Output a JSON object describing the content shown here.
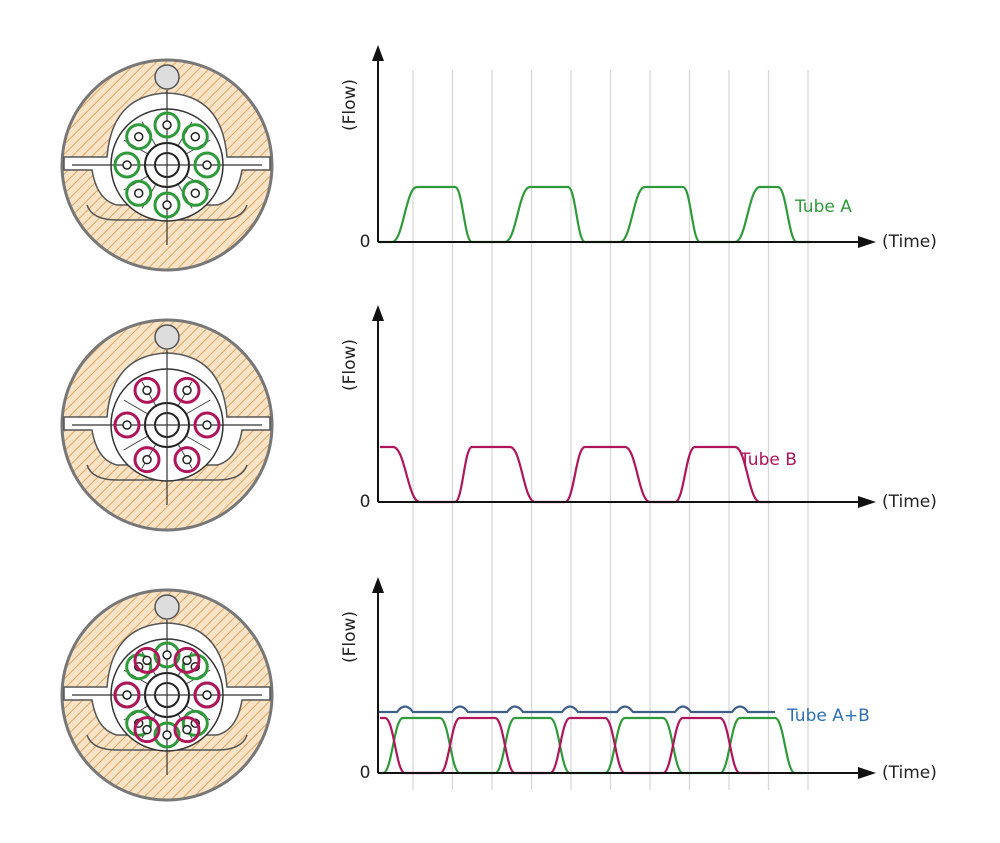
{
  "panels": [
    {
      "y_axis": "(Flow)",
      "origin": "0",
      "x_axis": "(Time)",
      "label": "Tube A"
    },
    {
      "y_axis": "(Flow)",
      "origin": "0",
      "x_axis": "(Time)",
      "label": "Tube B"
    },
    {
      "y_axis": "(Flow)",
      "origin": "0",
      "x_axis": "(Time)",
      "label": "Tube A+B"
    }
  ]
}
